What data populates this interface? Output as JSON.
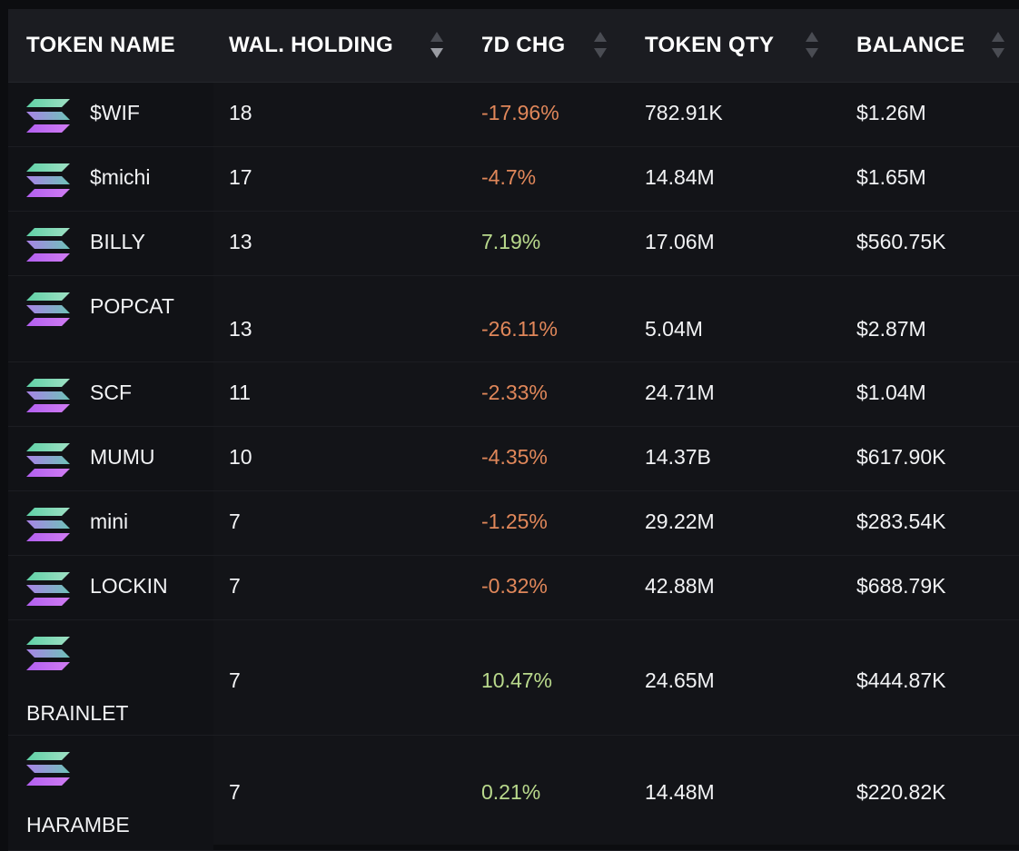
{
  "columns": {
    "token_name": "TOKEN NAME",
    "wallet_holding": "WAL. HOLDING",
    "change_7d": "7D CHG",
    "token_qty": "TOKEN QTY",
    "balance": "BALANCE"
  },
  "colors": {
    "negative": "#e0875a",
    "positive": "#b9d98c",
    "header_bg": "#1b1c21",
    "row_bg": "#131418"
  },
  "rows": [
    {
      "name": "$WIF",
      "holding": "18",
      "change": "-17.96%",
      "trend": "negative",
      "qty": "782.91K",
      "balance": "$1.26M"
    },
    {
      "name": "$michi",
      "holding": "17",
      "change": "-4.7%",
      "trend": "negative",
      "qty": "14.84M",
      "balance": "$1.65M"
    },
    {
      "name": "BILLY",
      "holding": "13",
      "change": "7.19%",
      "trend": "positive",
      "qty": "17.06M",
      "balance": "$560.75K"
    },
    {
      "name": "POPCAT",
      "holding": "13",
      "change": "-26.11%",
      "trend": "negative",
      "qty": "5.04M",
      "balance": "$2.87M"
    },
    {
      "name": "SCF",
      "holding": "11",
      "change": "-2.33%",
      "trend": "negative",
      "qty": "24.71M",
      "balance": "$1.04M"
    },
    {
      "name": "MUMU",
      "holding": "10",
      "change": "-4.35%",
      "trend": "negative",
      "qty": "14.37B",
      "balance": "$617.90K"
    },
    {
      "name": "mini",
      "holding": "7",
      "change": "-1.25%",
      "trend": "negative",
      "qty": "29.22M",
      "balance": "$283.54K"
    },
    {
      "name": "LOCKIN",
      "holding": "7",
      "change": "-0.32%",
      "trend": "negative",
      "qty": "42.88M",
      "balance": "$688.79K"
    },
    {
      "name": "BRAINLET",
      "holding": "7",
      "change": "10.47%",
      "trend": "positive",
      "qty": "24.65M",
      "balance": "$444.87K"
    },
    {
      "name": "HARAMBE",
      "holding": "7",
      "change": "0.21%",
      "trend": "positive",
      "qty": "14.48M",
      "balance": "$220.82K"
    }
  ]
}
